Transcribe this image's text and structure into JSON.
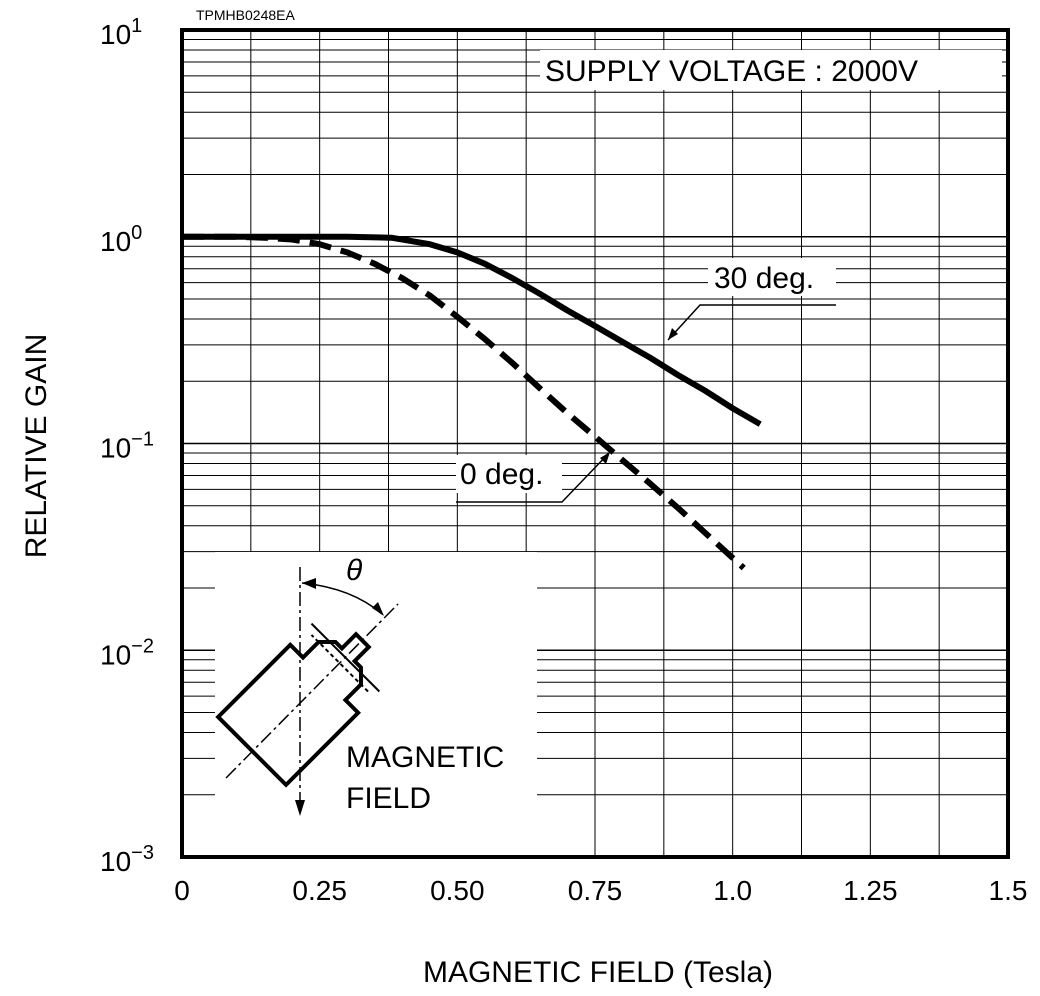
{
  "code_label": "TPMHB0248EA",
  "chart_data": {
    "type": "line",
    "title": "",
    "xlabel": "MAGNETIC FIELD (Tesla)",
    "ylabel": "RELATIVE GAIN",
    "xlim": [
      0,
      1.5
    ],
    "ylim": [
      0.001,
      10
    ],
    "yscale": "log",
    "grid": true,
    "x_ticks": [
      "0",
      "0.25",
      "0.50",
      "0.75",
      "1.0",
      "1.25",
      "1.5"
    ],
    "y_ticks": [
      {
        "base": "10",
        "exp": "1"
      },
      {
        "base": "10",
        "exp": "0"
      },
      {
        "base": "10",
        "exp": "−1"
      },
      {
        "base": "10",
        "exp": "−2"
      },
      {
        "base": "10",
        "exp": "−3"
      }
    ],
    "annotation": "SUPPLY VOLTAGE : 2000V",
    "series": [
      {
        "name": "30 deg.",
        "style": "solid",
        "x": [
          0,
          0.1,
          0.2,
          0.3,
          0.38,
          0.45,
          0.5,
          0.55,
          0.6,
          0.65,
          0.7,
          0.75,
          0.8,
          0.85,
          0.9,
          0.95,
          1.0,
          1.05
        ],
        "y": [
          1.0,
          1.0,
          1.0,
          1.0,
          0.99,
          0.92,
          0.84,
          0.74,
          0.63,
          0.53,
          0.44,
          0.37,
          0.31,
          0.26,
          0.215,
          0.18,
          0.148,
          0.124
        ]
      },
      {
        "name": "0 deg.",
        "style": "dashed",
        "x": [
          0,
          0.1,
          0.15,
          0.2,
          0.25,
          0.3,
          0.35,
          0.4,
          0.45,
          0.5,
          0.55,
          0.6,
          0.65,
          0.7,
          0.75,
          0.8,
          0.85,
          0.9,
          0.95,
          1.02
        ],
        "y": [
          1.0,
          1.0,
          0.99,
          0.97,
          0.92,
          0.84,
          0.74,
          0.63,
          0.52,
          0.41,
          0.32,
          0.245,
          0.185,
          0.14,
          0.108,
          0.083,
          0.064,
          0.049,
          0.037,
          0.025
        ]
      }
    ],
    "inset": {
      "theta_label": "θ",
      "field_label_line1": "MAGNETIC",
      "field_label_line2": "FIELD"
    }
  }
}
